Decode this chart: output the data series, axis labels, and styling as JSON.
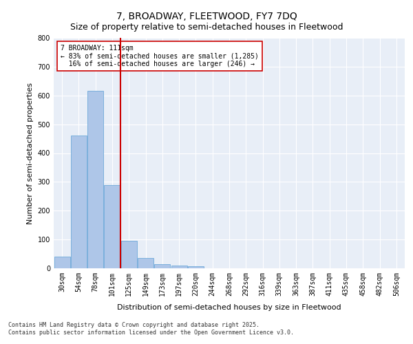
{
  "title": "7, BROADWAY, FLEETWOOD, FY7 7DQ",
  "subtitle": "Size of property relative to semi-detached houses in Fleetwood",
  "xlabel": "Distribution of semi-detached houses by size in Fleetwood",
  "ylabel": "Number of semi-detached properties",
  "categories": [
    "30sqm",
    "54sqm",
    "78sqm",
    "101sqm",
    "125sqm",
    "149sqm",
    "173sqm",
    "197sqm",
    "220sqm",
    "244sqm",
    "268sqm",
    "292sqm",
    "316sqm",
    "339sqm",
    "363sqm",
    "387sqm",
    "411sqm",
    "435sqm",
    "458sqm",
    "482sqm",
    "506sqm"
  ],
  "values": [
    40,
    460,
    615,
    290,
    95,
    35,
    15,
    10,
    8,
    0,
    0,
    0,
    0,
    0,
    0,
    0,
    0,
    0,
    0,
    0,
    0
  ],
  "bar_color": "#aec6e8",
  "bar_edge_color": "#5a9fd4",
  "red_line_x": 3.5,
  "red_line_label": "7 BROADWAY: 111sqm",
  "annotation_smaller": "← 83% of semi-detached houses are smaller (1,285)",
  "annotation_larger": "16% of semi-detached houses are larger (246) →",
  "ylim": [
    0,
    800
  ],
  "yticks": [
    0,
    100,
    200,
    300,
    400,
    500,
    600,
    700,
    800
  ],
  "background_color": "#e8eef7",
  "grid_color": "#ffffff",
  "footer_line1": "Contains HM Land Registry data © Crown copyright and database right 2025.",
  "footer_line2": "Contains public sector information licensed under the Open Government Licence v3.0.",
  "title_fontsize": 10,
  "subtitle_fontsize": 9,
  "axis_label_fontsize": 8,
  "tick_fontsize": 7,
  "annotation_fontsize": 7,
  "footer_fontsize": 6,
  "annotation_box_color": "#ffffff",
  "annotation_box_edge": "#cc0000",
  "red_line_color": "#cc0000"
}
